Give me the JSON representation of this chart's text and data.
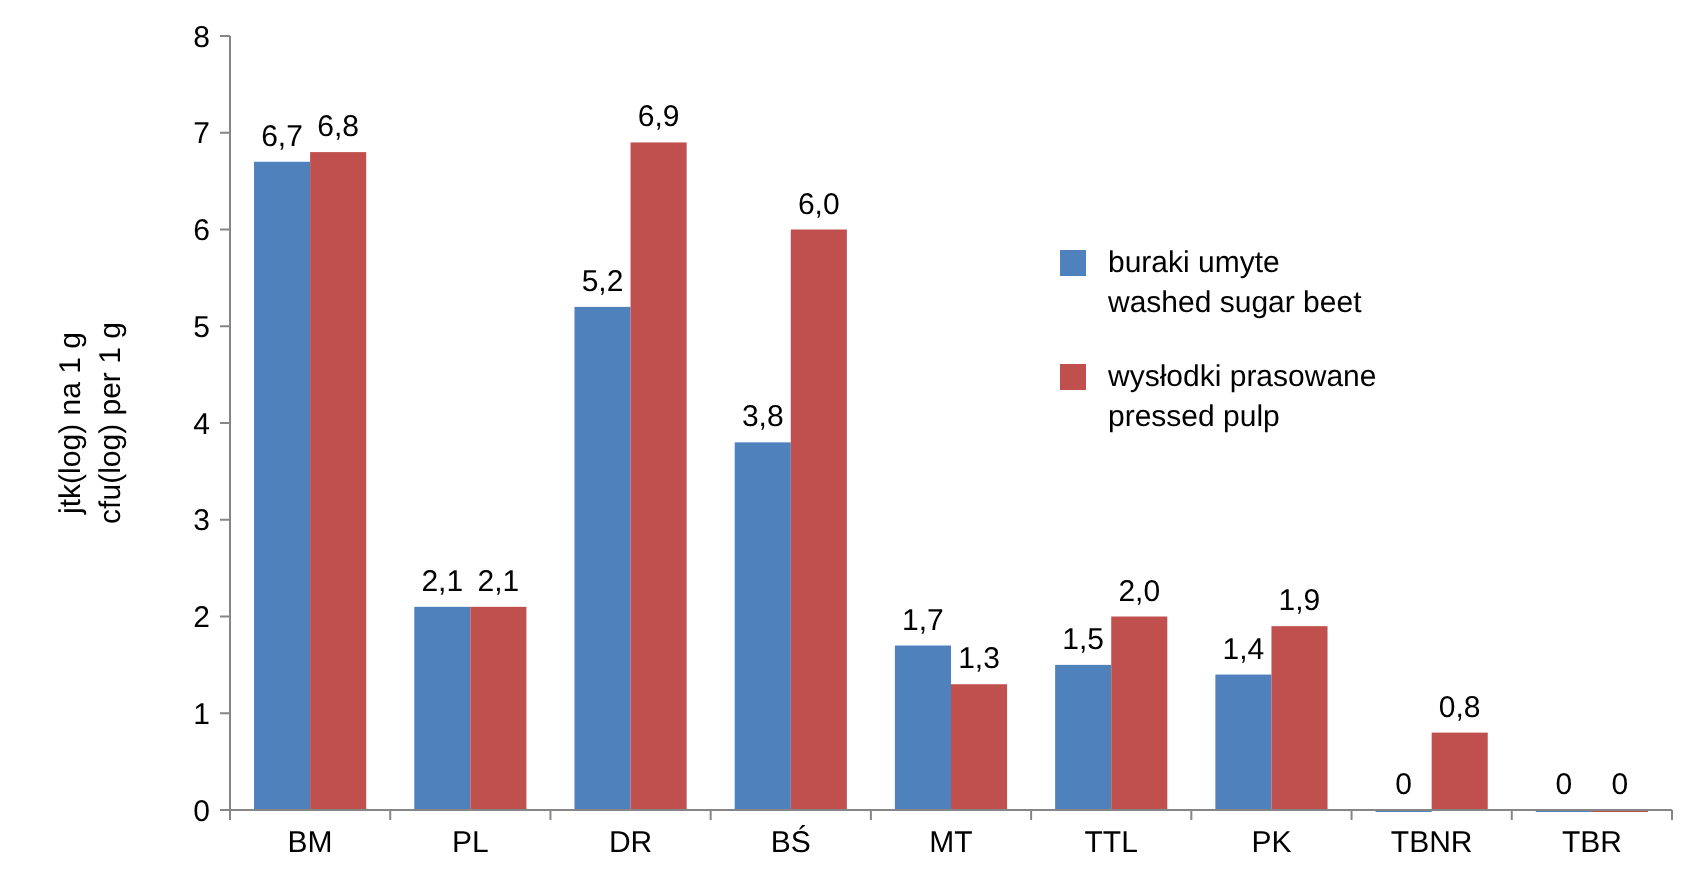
{
  "chart_data": {
    "type": "bar",
    "ylabel": "jtk(log) na 1 g\ncfu(log) per 1 g",
    "categories": [
      "BM",
      "PL",
      "DR",
      "BŚ",
      "MT",
      "TTL",
      "PK",
      "TBNR",
      "TBR"
    ],
    "series": [
      {
        "name": "buraki umyte\nwashed sugar beet",
        "color": "#4f81bd",
        "values": [
          6.7,
          2.1,
          5.2,
          3.8,
          1.7,
          1.5,
          1.4,
          0,
          0
        ],
        "value_labels": [
          "6,7",
          "2,1",
          "5,2",
          "3,8",
          "1,7",
          "1,5",
          "1,4",
          "0",
          "0"
        ]
      },
      {
        "name": "wysłodki prasowane\npressed pulp",
        "color": "#c0504d",
        "values": [
          6.8,
          2.1,
          6.9,
          6.0,
          1.3,
          2.0,
          1.9,
          0.8,
          0
        ],
        "value_labels": [
          "6,8",
          "2,1",
          "6,9",
          "6,0",
          "1,3",
          "2,0",
          "1,9",
          "0,8",
          "0"
        ]
      }
    ],
    "ylim": [
      0,
      8
    ],
    "yticks": [
      0,
      1,
      2,
      3,
      4,
      5,
      6,
      7,
      8
    ],
    "grid": false,
    "legend": "right"
  }
}
